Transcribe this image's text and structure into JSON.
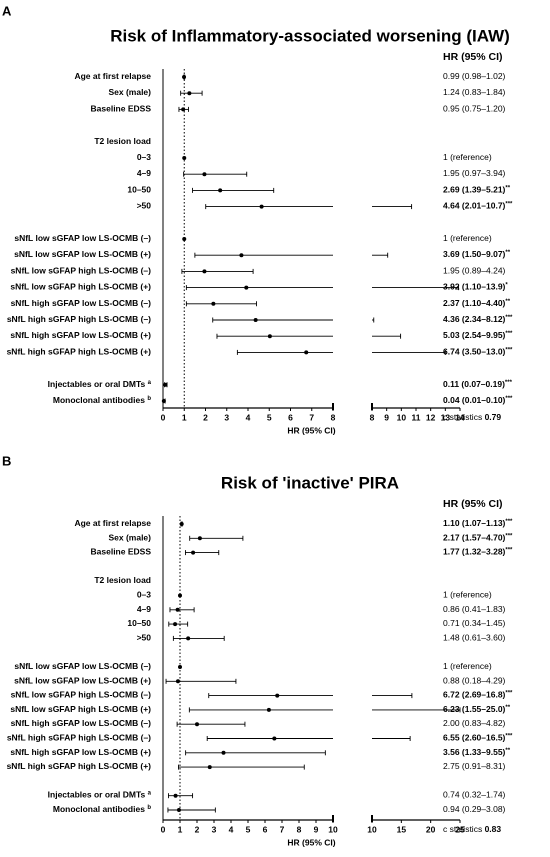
{
  "chart_data": [
    {
      "type": "forest",
      "panel": "A",
      "title": "Risk of Inflammatory-associated worsening (IAW)",
      "column_header": "HR (95% CI)",
      "xlabel": "HR (95% CI)",
      "categories": [
        "Age at first relapse",
        "Sex (male)",
        "Baseline EDSS",
        null,
        "T2 lesion load",
        "0–3",
        "4–9",
        "10–50",
        ">50",
        null,
        "sNfL low sGFAP low LS-OCMB (–)",
        "sNfL low sGFAP low LS-OCMB (+)",
        "sNfL low sGFAP high LS-OCMB (–)",
        "sNfL low sGFAP high LS-OCMB (+)",
        "sNfL high sGFAP low LS-OCMB (–)",
        "sNfL high sGFAP high LS-OCMB (–)",
        "sNfL high sGFAP low LS-OCMB (+)",
        "sNfL high sGFAP high LS-OCMB (+)",
        null,
        "Injectables or oral DMTs",
        "Monoclonal antibodies"
      ],
      "superscripts": [
        null,
        null,
        null,
        null,
        null,
        null,
        null,
        null,
        null,
        null,
        null,
        null,
        null,
        null,
        null,
        null,
        null,
        null,
        null,
        "a",
        "b"
      ],
      "values": [
        0.99,
        1.24,
        0.95,
        null,
        null,
        1,
        1.95,
        2.69,
        4.64,
        null,
        1,
        3.69,
        1.95,
        3.92,
        2.37,
        4.36,
        5.03,
        6.74,
        null,
        0.11,
        0.04
      ],
      "lower": [
        0.98,
        0.83,
        0.75,
        null,
        null,
        null,
        0.97,
        1.39,
        2.01,
        null,
        null,
        1.5,
        0.89,
        1.1,
        1.1,
        2.34,
        2.54,
        3.5,
        null,
        0.07,
        0.01
      ],
      "upper": [
        1.02,
        1.84,
        1.2,
        null,
        null,
        null,
        3.94,
        5.21,
        10.7,
        null,
        null,
        9.07,
        4.24,
        13.9,
        4.4,
        8.12,
        9.95,
        13.0,
        null,
        0.19,
        0.1
      ],
      "value_labels": [
        "0.99 (0.98–1.02)",
        "1.24 (0.83–1.84)",
        "0.95 (0.75–1.20)",
        null,
        null,
        "1 (reference)",
        "1.95 (0.97–3.94)",
        "2.69 (1.39–5.21)",
        "4.64 (2.01–10.7)",
        null,
        "1 (reference)",
        "3.69 (1.50–9.07)",
        "1.95 (0.89–4.24)",
        "3.92 (1.10–13.9)",
        "2.37 (1.10–4.40)",
        "4.36 (2.34–8.12)",
        "5.03 (2.54–9.95)",
        "6.74 (3.50–13.0)",
        null,
        "0.11 (0.07–0.19)",
        "0.04 (0.01–0.10)"
      ],
      "stars": [
        null,
        null,
        null,
        null,
        null,
        null,
        null,
        "**",
        "***",
        null,
        null,
        "**",
        null,
        "*",
        "**",
        "***",
        "***",
        "***",
        null,
        "***",
        "***"
      ],
      "bold": [
        false,
        false,
        false,
        false,
        false,
        false,
        false,
        true,
        true,
        false,
        false,
        true,
        false,
        true,
        true,
        true,
        true,
        true,
        false,
        true,
        true
      ],
      "reference_line": 1,
      "xlim": [
        0,
        8
      ],
      "xticks": [
        0,
        1,
        2,
        3,
        4,
        5,
        6,
        7,
        8
      ],
      "x2lim": [
        8,
        14
      ],
      "x2ticks": [
        8,
        9,
        10,
        11,
        12,
        13,
        14
      ],
      "c_statistics_label": "c statistics",
      "c_statistics": 0.79,
      "color": "#000000"
    },
    {
      "type": "forest",
      "panel": "B",
      "title": "Risk of 'inactive' PIRA",
      "column_header": "HR (95% CI)",
      "xlabel": "HR (95% CI)",
      "categories": [
        "Age at first relapse",
        "Sex (male)",
        "Baseline EDSS",
        null,
        "T2 lesion load",
        "0–3",
        "4–9",
        "10–50",
        ">50",
        null,
        "sNfL low sGFAP low LS-OCMB (–)",
        "sNfL low sGFAP low LS-OCMB (+)",
        "sNfL low sGFAP high LS-OCMB (–)",
        "sNfL low sGFAP high LS-OCMB (+)",
        "sNfL high sGFAP low LS-OCMB (–)",
        "sNfL high sGFAP high LS-OCMB (–)",
        "sNfL high sGFAP low LS-OCMB (+)",
        "sNfL high sGFAP high LS-OCMB (+)",
        null,
        "Injectables or oral DMTs",
        "Monoclonal antibodies"
      ],
      "superscripts": [
        null,
        null,
        null,
        null,
        null,
        null,
        null,
        null,
        null,
        null,
        null,
        null,
        null,
        null,
        null,
        null,
        null,
        null,
        null,
        "a",
        "b"
      ],
      "values": [
        1.1,
        2.17,
        1.77,
        null,
        null,
        1,
        0.86,
        0.71,
        1.48,
        null,
        1,
        0.88,
        6.72,
        6.23,
        2.0,
        6.55,
        3.56,
        2.75,
        null,
        0.74,
        0.94
      ],
      "lower": [
        1.07,
        1.57,
        1.32,
        null,
        null,
        null,
        0.41,
        0.34,
        0.61,
        null,
        null,
        0.18,
        2.69,
        1.55,
        0.83,
        2.6,
        1.33,
        0.91,
        null,
        0.32,
        0.29
      ],
      "upper": [
        1.13,
        4.7,
        3.28,
        null,
        null,
        null,
        1.83,
        1.45,
        3.6,
        null,
        null,
        4.29,
        16.8,
        25.0,
        4.82,
        16.5,
        9.55,
        8.31,
        null,
        1.74,
        3.08
      ],
      "value_labels": [
        "1.10 (1.07–1.13)",
        "2.17 (1.57–4.70)",
        "1.77 (1.32–3.28)",
        null,
        null,
        "1 (reference)",
        "0.86 (0.41–1.83)",
        "0.71 (0.34–1.45)",
        "1.48 (0.61–3.60)",
        null,
        "1 (reference)",
        "0.88 (0.18–4.29)",
        "6.72 (2.69–16.8)",
        "6.23 (1.55–25.0)",
        "2.00 (0.83–4.82)",
        "6.55 (2.60–16.5)",
        "3.56 (1.33–9.55)",
        "2.75 (0.91–8.31)",
        null,
        "0.74 (0.32–1.74)",
        "0.94 (0.29–3.08)"
      ],
      "stars": [
        "***",
        "***",
        "***",
        null,
        null,
        null,
        null,
        null,
        null,
        null,
        null,
        null,
        "***",
        "**",
        null,
        "***",
        "**",
        null,
        null,
        null,
        null
      ],
      "bold": [
        true,
        true,
        true,
        false,
        false,
        false,
        false,
        false,
        false,
        false,
        false,
        false,
        true,
        true,
        false,
        true,
        true,
        false,
        false,
        false,
        false
      ],
      "reference_line": 1,
      "xlim": [
        0,
        10
      ],
      "xticks": [
        0,
        1,
        2,
        3,
        4,
        5,
        6,
        7,
        8,
        9,
        10
      ],
      "x2lim": [
        10,
        25
      ],
      "x2ticks": [
        10,
        15,
        20,
        25
      ],
      "c_statistics_label": "c statistics",
      "c_statistics": 0.83,
      "color": "#000000"
    }
  ]
}
